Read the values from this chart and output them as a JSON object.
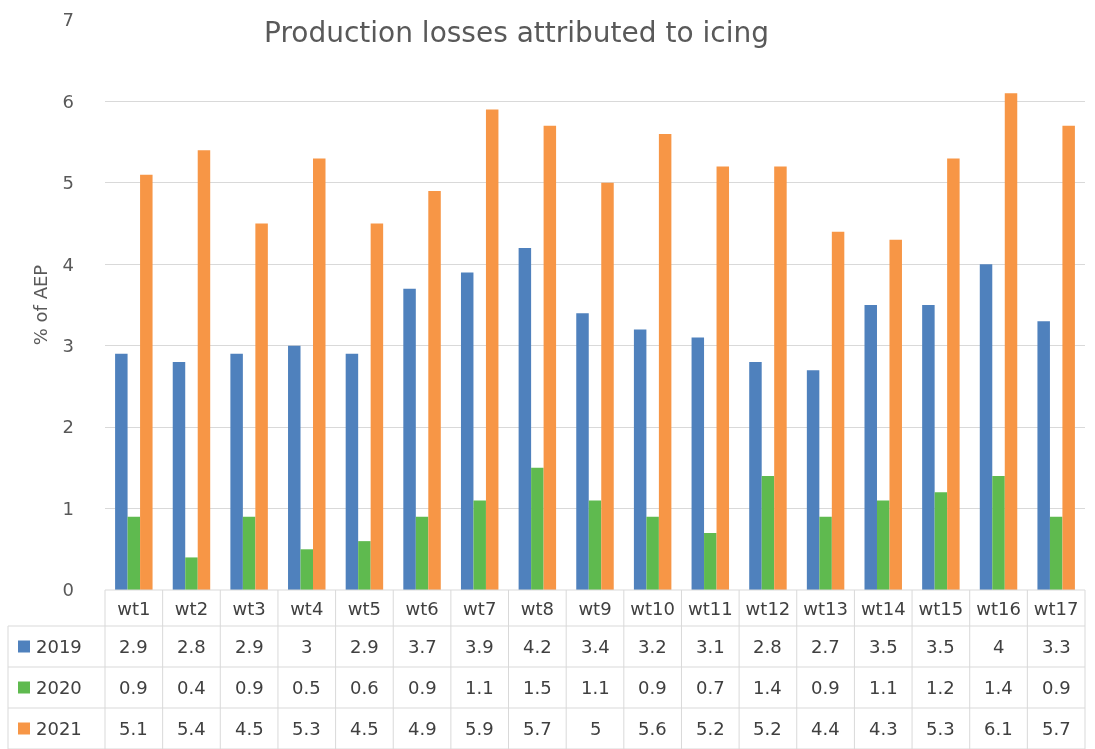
{
  "chart_data": {
    "type": "bar",
    "title": "Production losses attributed to icing",
    "ylabel": "% of AEP",
    "categories": [
      "wt1",
      "wt2",
      "wt3",
      "wt4",
      "wt5",
      "wt6",
      "wt7",
      "wt8",
      "wt9",
      "wt10",
      "wt11",
      "wt12",
      "wt13",
      "wt14",
      "wt15",
      "wt16",
      "wt17"
    ],
    "series": [
      {
        "name": "2019",
        "color": "#4f81bd",
        "values": [
          2.9,
          2.8,
          2.9,
          3,
          2.9,
          3.7,
          3.9,
          4.2,
          3.4,
          3.2,
          3.1,
          2.8,
          2.7,
          3.5,
          3.5,
          4,
          3.3
        ]
      },
      {
        "name": "2020",
        "color": "#5fba4f",
        "values": [
          0.9,
          0.4,
          0.9,
          0.5,
          0.6,
          0.9,
          1.1,
          1.5,
          1.1,
          0.9,
          0.7,
          1.4,
          0.9,
          1.1,
          1.2,
          1.4,
          0.9
        ]
      },
      {
        "name": "2021",
        "color": "#f79646",
        "values": [
          5.1,
          5.4,
          4.5,
          5.3,
          4.5,
          4.9,
          5.9,
          5.7,
          5,
          5.6,
          5.2,
          5.2,
          4.4,
          4.3,
          5.3,
          6.1,
          5.7
        ]
      }
    ],
    "ylim": [
      0,
      7
    ],
    "yticks": [
      0,
      1,
      2,
      3,
      4,
      5,
      6,
      7
    ],
    "grid": "y",
    "legend": "bottom",
    "data_labels": true
  }
}
